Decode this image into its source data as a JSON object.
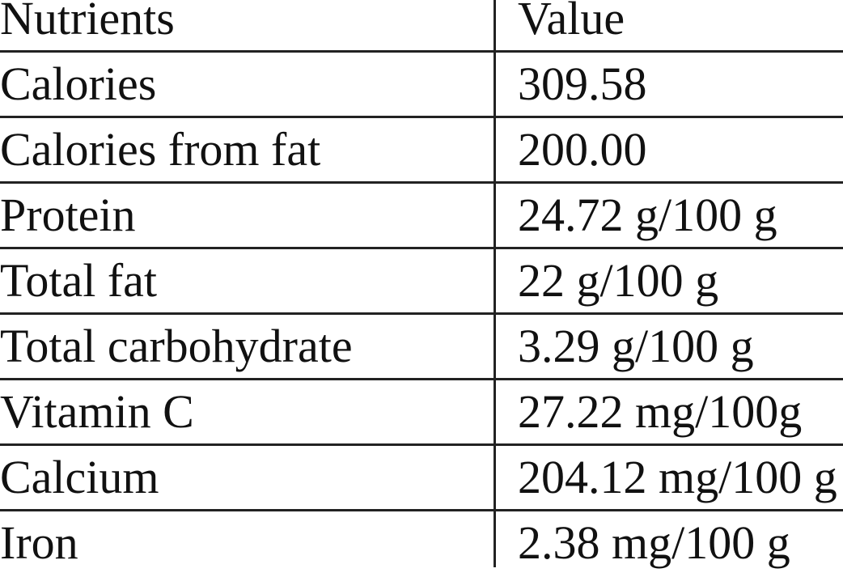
{
  "table": {
    "headers": [
      "Nutrients",
      "Value"
    ],
    "rows": [
      [
        "Calories",
        "309.58"
      ],
      [
        "Calories from fat",
        "200.00"
      ],
      [
        "Protein",
        "24.72 g/100 g"
      ],
      [
        "Total fat",
        "22 g/100 g"
      ],
      [
        "Total carbohydrate",
        "3.29 g/100 g"
      ],
      [
        "Vitamin C",
        "27.22 mg/100g"
      ],
      [
        "Calcium",
        "204.12 mg/100 g"
      ],
      [
        "Iron",
        "2.38 mg/100 g"
      ]
    ]
  }
}
